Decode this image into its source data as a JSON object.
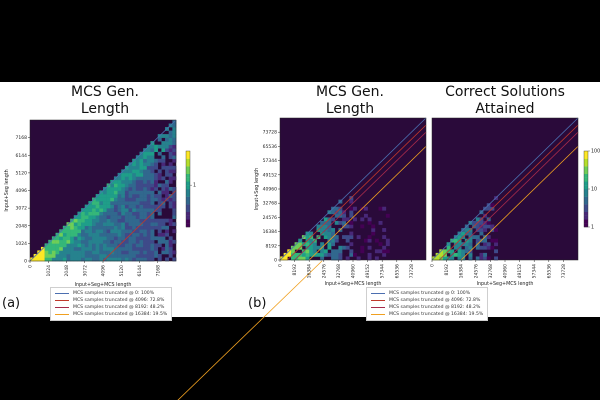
{
  "panel_labels": {
    "a": "(a)",
    "b": "(b)"
  },
  "titles": {
    "a": [
      "MCS Gen.",
      "Length"
    ],
    "b_left": [
      "MCS Gen.",
      "Length"
    ],
    "b_right": [
      "Correct Solutions",
      "Attained"
    ]
  },
  "legend": [
    {
      "label": "MCS samples truncated @ 0: 100%",
      "color": "#4c6fb0"
    },
    {
      "label": "MCS samples truncated @ 4096: 72.8%",
      "color": "#c0392b"
    },
    {
      "label": "MCS samples truncated @ 8192: 48.2%",
      "color": "#a52a4a"
    },
    {
      "label": "MCS samples truncated @ 16384: 19.5%",
      "color": "#f0a020"
    }
  ],
  "chart_data": [
    {
      "type": "heatmap",
      "title": "MCS Gen. Length",
      "xlabel": "Input+Seg+MCS length",
      "ylabel": "Input+Seg length",
      "xticks": [
        "0",
        "1024",
        "2048",
        "3072",
        "4096",
        "5120",
        "6144",
        "7168"
      ],
      "yticks": [
        "0",
        "1024",
        "2048",
        "3072",
        "4096",
        "5120",
        "6144",
        "7168"
      ],
      "xlim": [
        0,
        8192
      ],
      "ylim": [
        0,
        8192
      ],
      "reference_lines": [
        {
          "label": "MCS samples truncated @ 0: 100%",
          "offset": 0
        },
        {
          "label": "MCS samples truncated @ 4096: 72.8%",
          "offset": 4096
        },
        {
          "label": "MCS samples truncated @ 16384: 19.5%",
          "offset": 16384
        }
      ],
      "colorbar": {
        "scale": "log",
        "ticks": [
          "1"
        ]
      }
    },
    {
      "type": "heatmap",
      "title": "MCS Gen. Length",
      "xlabel": "Input+Seg+MCS length",
      "ylabel": "Input+Seg length",
      "xticks": [
        "0",
        "8192",
        "16384",
        "24576",
        "32768",
        "40960",
        "49152",
        "57344",
        "65536",
        "73728"
      ],
      "yticks": [
        "0",
        "8192",
        "16384",
        "24576",
        "32768",
        "40960",
        "49152",
        "57344",
        "65536",
        "73728"
      ],
      "xlim": [
        0,
        81920
      ],
      "ylim": [
        0,
        81920
      ],
      "reference_lines": [
        {
          "label": "MCS samples truncated @ 0: 100%",
          "offset": 0
        },
        {
          "label": "MCS samples truncated @ 4096: 72.8%",
          "offset": 4096
        },
        {
          "label": "MCS samples truncated @ 8192: 48.2%",
          "offset": 8192
        },
        {
          "label": "MCS samples truncated @ 16384: 19.5%",
          "offset": 16384
        }
      ]
    },
    {
      "type": "heatmap",
      "title": "Correct Solutions Attained",
      "xlabel": "Input+Seg+MCS length",
      "ylabel": "",
      "xticks": [
        "0",
        "8192",
        "16384",
        "24576",
        "32768",
        "40960",
        "49152",
        "57344",
        "65536",
        "73728"
      ],
      "yticks": [],
      "xlim": [
        0,
        81920
      ],
      "ylim": [
        0,
        81920
      ],
      "reference_lines": [
        {
          "label": "MCS samples truncated @ 0: 100%",
          "offset": 0
        },
        {
          "label": "MCS samples truncated @ 4096: 72.8%",
          "offset": 4096
        },
        {
          "label": "MCS samples truncated @ 8192: 48.2%",
          "offset": 8192
        },
        {
          "label": "MCS samples truncated @ 16384: 19.5%",
          "offset": 16384
        }
      ],
      "colorbar": {
        "scale": "log",
        "ticks": [
          "1",
          "10",
          "100"
        ]
      }
    }
  ]
}
